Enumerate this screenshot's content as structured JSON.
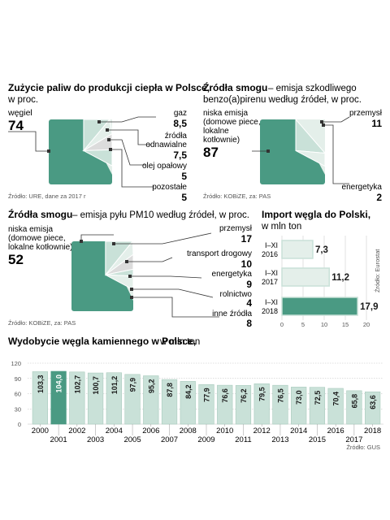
{
  "colors": {
    "dark": "#4a9a83",
    "light": "#c9e1d8",
    "pale": "#e4efea",
    "grey": "#dcdcdc",
    "text": "#1a1a1a",
    "muted": "#555555",
    "line": "#333333"
  },
  "chart_data": [
    {
      "type": "pie",
      "title": "Zużycie paliw do produkcji ciepła w Polsce,",
      "subtitle": "w proc.",
      "source": "Źródło: URE, dane za 2017 r",
      "slices": [
        {
          "label": "węgiel",
          "value": 74
        },
        {
          "label": "gaz",
          "value": 8.5
        },
        {
          "label": "źródła odnawialne",
          "value": 7.5
        },
        {
          "label": "olej opałowy",
          "value": 5
        },
        {
          "label": "pozostałe",
          "value": 5
        }
      ]
    },
    {
      "type": "pie",
      "title": "Źródła smogu",
      "subtitle": "– emisja szkodliwego benzo(a)pirenu według źródeł, w proc.",
      "source": "Źródło: KOBiZE, za: PAS",
      "slices": [
        {
          "label": "niska emisja (domowe piece, lokalne kotłownie)",
          "value": 87
        },
        {
          "label": "przemysł",
          "value": 11
        },
        {
          "label": "energetyka",
          "value": 2
        }
      ]
    },
    {
      "type": "pie",
      "title": "Źródła smogu",
      "subtitle": "– emisja pyłu PM10 według źródeł, w proc.",
      "source": "Źródło: KOBiZE, za: PAS",
      "slices": [
        {
          "label": "niska emisja (domowe piece, lokalne kotłownie)",
          "value": 52
        },
        {
          "label": "przemysł",
          "value": 17
        },
        {
          "label": "transport drogowy",
          "value": 10
        },
        {
          "label": "energetyka",
          "value": 9
        },
        {
          "label": "rolnictwo",
          "value": 4
        },
        {
          "label": "inne źródła",
          "value": 8
        }
      ]
    },
    {
      "type": "bar",
      "orientation": "horizontal",
      "title": "Import węgla do Polski,",
      "subtitle": "w mln ton",
      "source": "Źródło: Eurostat",
      "categories": [
        "I–XI 2016",
        "I–XI 2017",
        "I–XI 2018"
      ],
      "values": [
        7.3,
        11.2,
        17.9
      ],
      "value_labels": [
        "7,3",
        "11,2",
        "17,9"
      ],
      "xlim": [
        0,
        20
      ],
      "xticks": [
        0,
        5,
        10,
        15,
        20
      ]
    },
    {
      "type": "bar",
      "title": "Wydobycie węgla kamiennego w Polsce,",
      "subtitle": "w mln ton",
      "source": "Źródło: GUS",
      "categories": [
        "2000",
        "2001",
        "2002",
        "2003",
        "2004",
        "2005",
        "2006",
        "2007",
        "2008",
        "2009",
        "2010",
        "2011",
        "2012",
        "2013",
        "2014",
        "2015",
        "2016",
        "2017",
        "2018"
      ],
      "values": [
        103.3,
        104.0,
        102.7,
        100.7,
        101.2,
        97.9,
        95.2,
        87.8,
        84.2,
        77.9,
        76.6,
        76.2,
        79.5,
        76.5,
        73.0,
        72.5,
        70.4,
        65.8,
        63.6
      ],
      "value_labels": [
        "103,3",
        "104,0",
        "102,7",
        "100,7",
        "101,2",
        "97,9",
        "95,2",
        "87,8",
        "84,2",
        "77,9",
        "76,6",
        "76,2",
        "79,5",
        "76,5",
        "73,0",
        "72,5",
        "70,4",
        "65,8",
        "63,6"
      ],
      "highlight_index": 1,
      "ylim": [
        0,
        120
      ],
      "yticks": [
        0,
        30,
        60,
        90,
        120
      ]
    }
  ]
}
